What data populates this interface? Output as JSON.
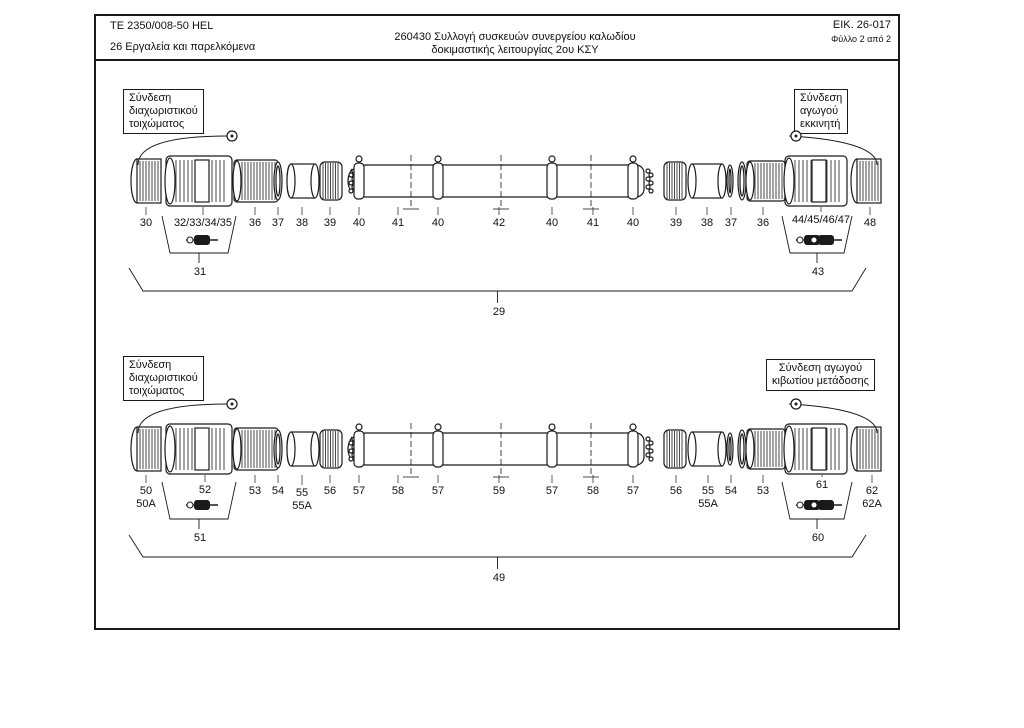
{
  "header": {
    "doc_code": "TE  2350/008-50 HEL",
    "section": "26 Εργαλεία και παρελκόμενα",
    "title_line1": "260430 Συλλογή συσκευών συνεργείου καλωδίου",
    "title_line2": "δοκιμαστικής λειτουργίας 2ου ΚΣΥ",
    "figure": "ΕΙΚ. 26-017",
    "sheet": "Φύλλο 2 από 2"
  },
  "top_assembly": {
    "left_label": [
      "Σύνδεση",
      "διαχωριστικού",
      "τοιχώματος"
    ],
    "right_label": [
      "Σύνδεση",
      "αγωγού",
      "εκκινητή"
    ],
    "callouts": [
      "30",
      "32/33/34/35",
      "36",
      "37",
      "38",
      "39",
      "40",
      "41",
      "40",
      "42",
      "40",
      "41",
      "40",
      "39",
      "38",
      "37",
      "36",
      "44/45/46/47",
      "48"
    ],
    "left_kit": "31",
    "right_kit": "43",
    "assembly": "29"
  },
  "bottom_assembly": {
    "left_label": [
      "Σύνδεση",
      "διαχωριστικού",
      "τοιχώματος"
    ],
    "right_label": [
      "Σύνδεση αγωγού",
      "κιβωτίου μετάδοσης"
    ],
    "callouts": [
      "50",
      "50A",
      "52",
      "53",
      "54",
      "55",
      "55A",
      "56",
      "57",
      "58",
      "57",
      "59",
      "57",
      "58",
      "57",
      "56",
      "55",
      "55A",
      "54",
      "53",
      "61",
      "62",
      "62A"
    ],
    "left_kit": "51",
    "right_kit": "60",
    "assembly": "49"
  }
}
